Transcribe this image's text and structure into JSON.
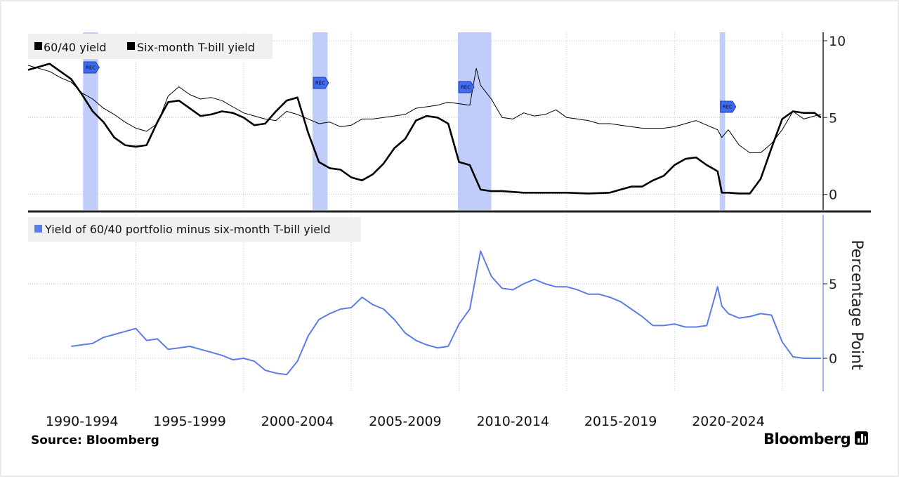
{
  "chart_data": [
    {
      "type": "line",
      "panel": "top",
      "legend_placement": "top-left",
      "grid": true,
      "ylim": [
        -1,
        10.5
      ],
      "yticks": [
        0,
        5,
        10
      ],
      "xlim": [
        1988.0,
        2024.9
      ],
      "recessions": [
        {
          "start": 1990.55,
          "end": 1991.25
        },
        {
          "start": 2001.2,
          "end": 2001.9
        },
        {
          "start": 2007.95,
          "end": 2009.5
        },
        {
          "start": 2020.1,
          "end": 2020.35
        }
      ],
      "rec_marker_label": "REC",
      "series": [
        {
          "name": "60/40 yield",
          "color": "#000000",
          "width": 1,
          "x": [
            1988.0,
            1988.5,
            1989.0,
            1989.5,
            1990.0,
            1990.5,
            1991.0,
            1991.5,
            1992.0,
            1992.5,
            1993.0,
            1993.5,
            1994.0,
            1994.5,
            1995.0,
            1995.5,
            1996.0,
            1996.5,
            1997.0,
            1997.5,
            1998.0,
            1998.5,
            1999.0,
            1999.5,
            2000.0,
            2000.5,
            2001.0,
            2001.5,
            2002.0,
            2002.5,
            2003.0,
            2003.5,
            2004.0,
            2004.5,
            2005.0,
            2005.5,
            2006.0,
            2006.5,
            2007.0,
            2007.5,
            2008.0,
            2008.5,
            2008.8,
            2009.0,
            2009.5,
            2010.0,
            2010.5,
            2011.0,
            2011.5,
            2012.0,
            2012.5,
            2013.0,
            2013.5,
            2014.0,
            2014.5,
            2015.0,
            2015.5,
            2016.0,
            2016.5,
            2017.0,
            2017.5,
            2018.0,
            2018.5,
            2019.0,
            2019.5,
            2020.0,
            2020.2,
            2020.5,
            2021.0,
            2021.5,
            2022.0,
            2022.5,
            2023.0,
            2023.5,
            2024.0,
            2024.5,
            2024.8
          ],
          "y": [
            8.4,
            8.2,
            8.0,
            7.6,
            7.3,
            6.6,
            6.2,
            5.6,
            5.2,
            4.7,
            4.3,
            4.1,
            4.6,
            6.4,
            7.0,
            6.5,
            6.2,
            6.3,
            6.1,
            5.7,
            5.3,
            5.1,
            4.9,
            4.8,
            5.4,
            5.2,
            4.9,
            4.6,
            4.7,
            4.4,
            4.5,
            4.9,
            4.9,
            5.0,
            5.1,
            5.2,
            5.6,
            5.7,
            5.8,
            6.0,
            5.9,
            5.8,
            8.2,
            7.1,
            6.2,
            5.0,
            4.9,
            5.3,
            5.1,
            5.2,
            5.5,
            5.0,
            4.9,
            4.8,
            4.6,
            4.6,
            4.5,
            4.4,
            4.3,
            4.3,
            4.3,
            4.4,
            4.6,
            4.8,
            4.5,
            4.2,
            3.7,
            4.2,
            3.2,
            2.7,
            2.7,
            3.3,
            4.2,
            5.4,
            4.9,
            5.1,
            5.2
          ]
        },
        {
          "name": "Six-month T-bill yield",
          "color": "#000000",
          "width": 2.6,
          "x": [
            1988.0,
            1988.5,
            1989.0,
            1989.5,
            1990.0,
            1990.5,
            1991.0,
            1991.5,
            1992.0,
            1992.5,
            1993.0,
            1993.5,
            1994.0,
            1994.5,
            1995.0,
            1995.5,
            1996.0,
            1996.5,
            1997.0,
            1997.5,
            1998.0,
            1998.5,
            1999.0,
            1999.5,
            2000.0,
            2000.5,
            2001.0,
            2001.5,
            2002.0,
            2002.5,
            2003.0,
            2003.5,
            2004.0,
            2004.5,
            2005.0,
            2005.5,
            2006.0,
            2006.5,
            2007.0,
            2007.5,
            2008.0,
            2008.5,
            2009.0,
            2009.5,
            2010.0,
            2011.0,
            2012.0,
            2013.0,
            2014.0,
            2015.0,
            2015.5,
            2016.0,
            2016.5,
            2017.0,
            2017.5,
            2018.0,
            2018.5,
            2019.0,
            2019.5,
            2020.0,
            2020.2,
            2020.5,
            2021.0,
            2021.5,
            2022.0,
            2022.5,
            2023.0,
            2023.5,
            2024.0,
            2024.5,
            2024.8
          ],
          "y": [
            8.1,
            8.3,
            8.5,
            8.0,
            7.5,
            6.5,
            5.4,
            4.7,
            3.7,
            3.2,
            3.1,
            3.2,
            4.7,
            6.0,
            6.1,
            5.6,
            5.1,
            5.2,
            5.4,
            5.3,
            5.0,
            4.5,
            4.6,
            5.4,
            6.1,
            6.3,
            4.0,
            2.1,
            1.7,
            1.6,
            1.1,
            0.9,
            1.3,
            2.0,
            3.0,
            3.6,
            4.8,
            5.1,
            5.0,
            4.6,
            2.1,
            1.9,
            0.3,
            0.2,
            0.2,
            0.1,
            0.1,
            0.1,
            0.05,
            0.1,
            0.3,
            0.5,
            0.5,
            0.9,
            1.2,
            1.9,
            2.3,
            2.4,
            1.9,
            1.5,
            0.1,
            0.1,
            0.05,
            0.05,
            1.0,
            3.0,
            4.9,
            5.4,
            5.3,
            5.3,
            5.0
          ]
        }
      ]
    },
    {
      "type": "line",
      "panel": "bottom",
      "legend_placement": "top-left",
      "grid": true,
      "ylabel": "Percentage Point",
      "ylim": [
        -2.3,
        9.5
      ],
      "yticks": [
        0,
        5
      ],
      "xlim": [
        1988.0,
        2024.9
      ],
      "series": [
        {
          "name": "Yield of 60/40 portfolio minus six-month T-bill yield",
          "color": "#5b7de8",
          "width": 2,
          "x": [
            1990.0,
            1990.5,
            1991.0,
            1991.5,
            1992.0,
            1992.5,
            1993.0,
            1993.5,
            1994.0,
            1994.5,
            1995.0,
            1995.5,
            1996.0,
            1996.5,
            1997.0,
            1997.5,
            1998.0,
            1998.5,
            1999.0,
            1999.5,
            2000.0,
            2000.5,
            2001.0,
            2001.5,
            2002.0,
            2002.5,
            2003.0,
            2003.5,
            2004.0,
            2004.5,
            2005.0,
            2005.5,
            2006.0,
            2006.5,
            2007.0,
            2007.5,
            2008.0,
            2008.5,
            2009.0,
            2009.5,
            2010.0,
            2010.5,
            2011.0,
            2011.5,
            2012.0,
            2012.5,
            2013.0,
            2013.5,
            2014.0,
            2014.5,
            2015.0,
            2015.5,
            2016.0,
            2016.5,
            2017.0,
            2017.5,
            2018.0,
            2018.5,
            2019.0,
            2019.5,
            2020.0,
            2020.2,
            2020.5,
            2021.0,
            2021.5,
            2022.0,
            2022.5,
            2023.0,
            2023.5,
            2024.0,
            2024.5,
            2024.8
          ],
          "y": [
            0.8,
            0.9,
            1.0,
            1.4,
            1.6,
            1.8,
            2.0,
            1.2,
            1.3,
            0.6,
            0.7,
            0.8,
            0.6,
            0.4,
            0.2,
            -0.1,
            0.0,
            -0.2,
            -0.8,
            -1.0,
            -1.1,
            -0.2,
            1.5,
            2.6,
            3.0,
            3.3,
            3.4,
            4.1,
            3.6,
            3.3,
            2.6,
            1.7,
            1.2,
            0.9,
            0.7,
            0.8,
            2.3,
            3.3,
            7.2,
            5.5,
            4.7,
            4.6,
            5.0,
            5.3,
            5.0,
            4.8,
            4.8,
            4.6,
            4.3,
            4.3,
            4.1,
            3.8,
            3.3,
            2.8,
            2.2,
            2.2,
            2.3,
            2.1,
            2.1,
            2.2,
            4.8,
            3.5,
            3.0,
            2.7,
            2.8,
            3.0,
            2.9,
            1.1,
            0.1,
            0.0,
            0.0,
            0.0
          ]
        }
      ]
    },
    {
      "x_categories": [
        "1990-1994",
        "1995-1999",
        "2000-2004",
        "2005-2009",
        "2010-2014",
        "2015-2019",
        "2020-2024"
      ]
    }
  ],
  "footer": {
    "source": "Source: Bloomberg",
    "brand": "Bloomberg"
  }
}
